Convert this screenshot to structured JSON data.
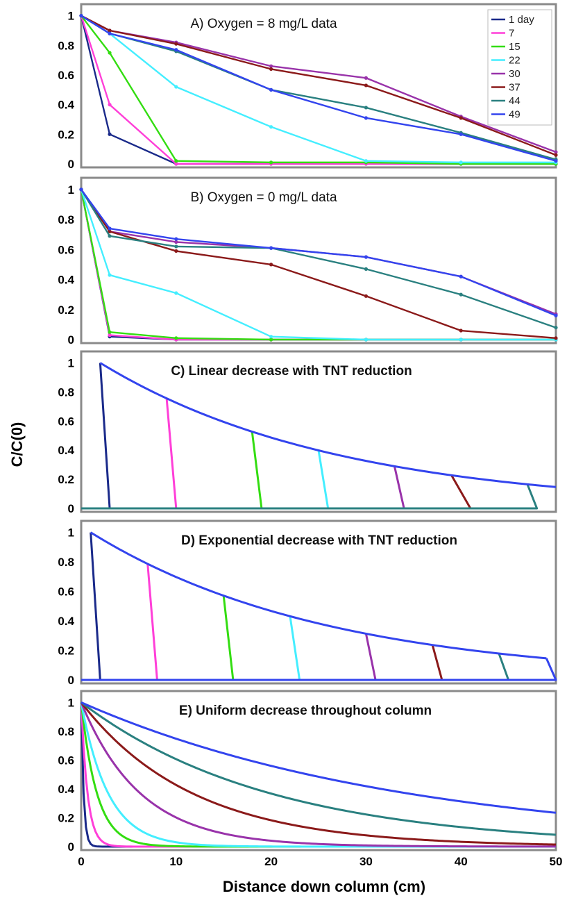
{
  "chart_data": {
    "type": "line",
    "ylabel": "C/C(0)",
    "xlabel": "Distance down column (cm)",
    "xlim": [
      0,
      50
    ],
    "ylim": [
      0,
      1.05
    ],
    "x_ticks": [
      "0",
      "10",
      "20",
      "30",
      "40",
      "50"
    ],
    "grid": false,
    "legend": {
      "placement": "top-right",
      "entries": [
        {
          "name": "1 day",
          "color": "#1a2a8a"
        },
        {
          "name": "7",
          "color": "#ff3fd8"
        },
        {
          "name": "15",
          "color": "#33dd11"
        },
        {
          "name": "22",
          "color": "#44eeff"
        },
        {
          "name": "30",
          "color": "#9933aa"
        },
        {
          "name": "37",
          "color": "#8b1a1a"
        },
        {
          "name": "44",
          "color": "#2a8080"
        },
        {
          "name": "49",
          "color": "#3344ee"
        }
      ]
    },
    "panels": [
      {
        "id": "A",
        "title": "A) Oxygen = 8 mg/L data",
        "y_ticks": [
          "1",
          "0.8",
          "0.6",
          "0.4",
          "0.2",
          "0"
        ],
        "series": [
          {
            "color": "#1a2a8a",
            "x": [
              0,
              3,
              10,
              20,
              30,
              40,
              50
            ],
            "y": [
              1.0,
              0.2,
              0.0,
              0.0,
              0.0,
              0.0,
              0.0
            ]
          },
          {
            "color": "#ff3fd8",
            "x": [
              0,
              3,
              10,
              20,
              30,
              40,
              50
            ],
            "y": [
              1.0,
              0.4,
              0.0,
              0.0,
              0.0,
              0.0,
              0.0
            ]
          },
          {
            "color": "#33dd11",
            "x": [
              0,
              3,
              10,
              20,
              30,
              40,
              50
            ],
            "y": [
              1.0,
              0.75,
              0.02,
              0.01,
              0.01,
              0.0,
              0.0
            ]
          },
          {
            "color": "#44eeff",
            "x": [
              0,
              3,
              10,
              20,
              30,
              40,
              50
            ],
            "y": [
              1.0,
              0.88,
              0.52,
              0.25,
              0.02,
              0.01,
              0.01
            ]
          },
          {
            "color": "#9933aa",
            "x": [
              0,
              3,
              10,
              20,
              30,
              40,
              50
            ],
            "y": [
              1.0,
              0.9,
              0.82,
              0.66,
              0.58,
              0.32,
              0.08
            ]
          },
          {
            "color": "#8b1a1a",
            "x": [
              0,
              3,
              10,
              20,
              30,
              40,
              50
            ],
            "y": [
              1.0,
              0.9,
              0.81,
              0.64,
              0.53,
              0.31,
              0.06
            ]
          },
          {
            "color": "#2a8080",
            "x": [
              0,
              3,
              10,
              20,
              30,
              40,
              50
            ],
            "y": [
              1.0,
              0.88,
              0.76,
              0.5,
              0.38,
              0.21,
              0.03
            ]
          },
          {
            "color": "#3344ee",
            "x": [
              0,
              3,
              10,
              20,
              30,
              40,
              50
            ],
            "y": [
              1.0,
              0.88,
              0.77,
              0.5,
              0.31,
              0.2,
              0.02
            ]
          }
        ]
      },
      {
        "id": "B",
        "title": "B) Oxygen = 0 mg/L data",
        "y_ticks": [
          "1",
          "0.8",
          "0.6",
          "0.4",
          "0.2",
          "0"
        ],
        "series": [
          {
            "color": "#1a2a8a",
            "x": [
              0,
              3,
              10,
              20,
              30,
              40,
              50
            ],
            "y": [
              1.0,
              0.02,
              0.0,
              0.0,
              0.0,
              0.0,
              0.0
            ]
          },
          {
            "color": "#ff3fd8",
            "x": [
              0,
              3,
              10,
              20,
              30,
              40,
              50
            ],
            "y": [
              1.0,
              0.03,
              0.0,
              0.0,
              0.0,
              0.0,
              0.0
            ]
          },
          {
            "color": "#33dd11",
            "x": [
              0,
              3,
              10,
              20,
              30,
              40,
              50
            ],
            "y": [
              1.0,
              0.05,
              0.01,
              0.0,
              0.0,
              0.0,
              0.0
            ]
          },
          {
            "color": "#44eeff",
            "x": [
              0,
              3,
              10,
              20,
              30,
              40,
              50
            ],
            "y": [
              1.0,
              0.43,
              0.31,
              0.02,
              0.0,
              0.0,
              0.0
            ]
          },
          {
            "color": "#9933aa",
            "x": [
              0,
              3,
              10,
              20,
              30,
              40,
              50
            ],
            "y": [
              1.0,
              0.72,
              0.65,
              0.61,
              0.55,
              0.42,
              0.17
            ]
          },
          {
            "color": "#8b1a1a",
            "x": [
              0,
              3,
              10,
              20,
              30,
              40,
              50
            ],
            "y": [
              1.0,
              0.72,
              0.59,
              0.5,
              0.29,
              0.06,
              0.01
            ]
          },
          {
            "color": "#2a8080",
            "x": [
              0,
              3,
              10,
              20,
              30,
              40,
              50
            ],
            "y": [
              1.0,
              0.69,
              0.62,
              0.61,
              0.47,
              0.3,
              0.08
            ]
          },
          {
            "color": "#3344ee",
            "x": [
              0,
              3,
              10,
              20,
              30,
              40,
              50
            ],
            "y": [
              1.0,
              0.74,
              0.67,
              0.61,
              0.55,
              0.42,
              0.16
            ]
          }
        ]
      },
      {
        "id": "C",
        "title": "C) Linear decrease with TNT reduction",
        "y_ticks": [
          "1",
          "0.8",
          "0.6",
          "0.4",
          "0.2",
          "0"
        ],
        "envelope": {
          "color": "#3344ee",
          "x0": 2,
          "y0": 1.0,
          "decay_per_cm": 0.04,
          "x_end": 50
        },
        "front_x": [
          2.0,
          9.0,
          18.0,
          25.0,
          33.0,
          39.0,
          47.0
        ],
        "front_drop_x": [
          3.0,
          10.0,
          19.0,
          26.0,
          34.0,
          41.0,
          48.0
        ],
        "front_colors": [
          "#1a2a8a",
          "#ff3fd8",
          "#33dd11",
          "#44eeff",
          "#9933aa",
          "#8b1a1a",
          "#2a8080"
        ]
      },
      {
        "id": "D",
        "title": "D) Exponential decrease with TNT reduction",
        "y_ticks": [
          "1",
          "0.8",
          "0.6",
          "0.4",
          "0.2",
          "0"
        ],
        "envelope": {
          "color": "#3344ee",
          "x0": 1,
          "y0": 1.0,
          "decay_per_cm": 0.04,
          "x_end": 49
        },
        "front_x": [
          1.0,
          7.0,
          15.0,
          22.0,
          30.0,
          37.0,
          44.0,
          49.0
        ],
        "front_drop_x": [
          2.0,
          8.0,
          16.0,
          23.0,
          31.0,
          38.0,
          45.0,
          50.0
        ],
        "front_colors": [
          "#1a2a8a",
          "#ff3fd8",
          "#33dd11",
          "#44eeff",
          "#9933aa",
          "#8b1a1a",
          "#2a8080",
          "#3344ee"
        ]
      },
      {
        "id": "E",
        "title": "E) Uniform decrease throughout column",
        "y_ticks": [
          "1",
          "0.8",
          "0.6",
          "0.4",
          "0.2",
          "0"
        ],
        "decay_rates": [
          {
            "color": "#1a2a8a",
            "k": 4.0
          },
          {
            "color": "#ff3fd8",
            "k": 1.5
          },
          {
            "color": "#33dd11",
            "k": 0.6
          },
          {
            "color": "#44eeff",
            "k": 0.35
          },
          {
            "color": "#9933aa",
            "k": 0.16
          },
          {
            "color": "#8b1a1a",
            "k": 0.085
          },
          {
            "color": "#2a8080",
            "k": 0.05
          },
          {
            "color": "#3344ee",
            "k": 0.029
          }
        ]
      }
    ]
  }
}
